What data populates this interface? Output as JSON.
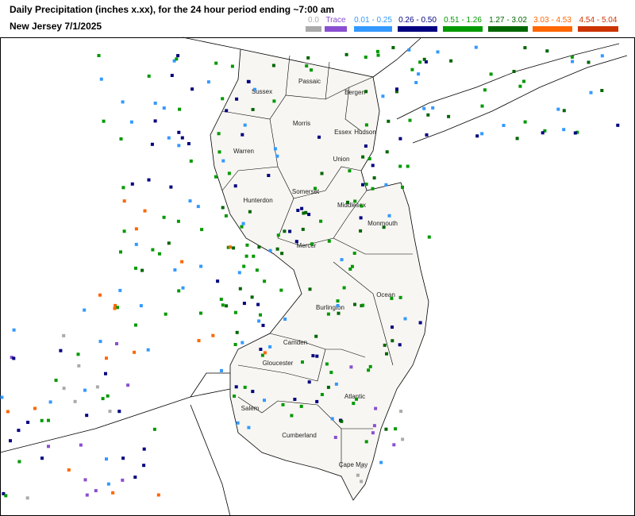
{
  "header": {
    "title": "Daily Precipitation (inches  x.xx),  for the 24 hour period ending ~7:00 am",
    "subtitle": "New Jersey 7/1/2025"
  },
  "legend": [
    {
      "label": "0.0",
      "color": "#aaaaaa"
    },
    {
      "label": "Trace",
      "color": "#8a4fd0"
    },
    {
      "label": "0.01 - 0.25",
      "color": "#3399ff"
    },
    {
      "label": "0.26 - 0.50",
      "color": "#000080"
    },
    {
      "label": "0.51 - 1.26",
      "color": "#009900"
    },
    {
      "label": "1.27 - 3.02",
      "color": "#006600"
    },
    {
      "label": "3.03 - 4.53",
      "color": "#ff6600"
    },
    {
      "label": "4.54 - 5.04",
      "color": "#cc3300"
    }
  ],
  "counties": [
    "Sussex",
    "Passaic",
    "Bergen",
    "Morris",
    "Essex",
    "Hudson",
    "Warren",
    "Union",
    "Somerset",
    "Hunterdon",
    "Middlesex",
    "Monmouth",
    "Mercer",
    "Ocean",
    "Burlington",
    "Camden",
    "Gloucester",
    "Atlantic",
    "Salem",
    "Cumberland",
    "Cape May"
  ]
}
